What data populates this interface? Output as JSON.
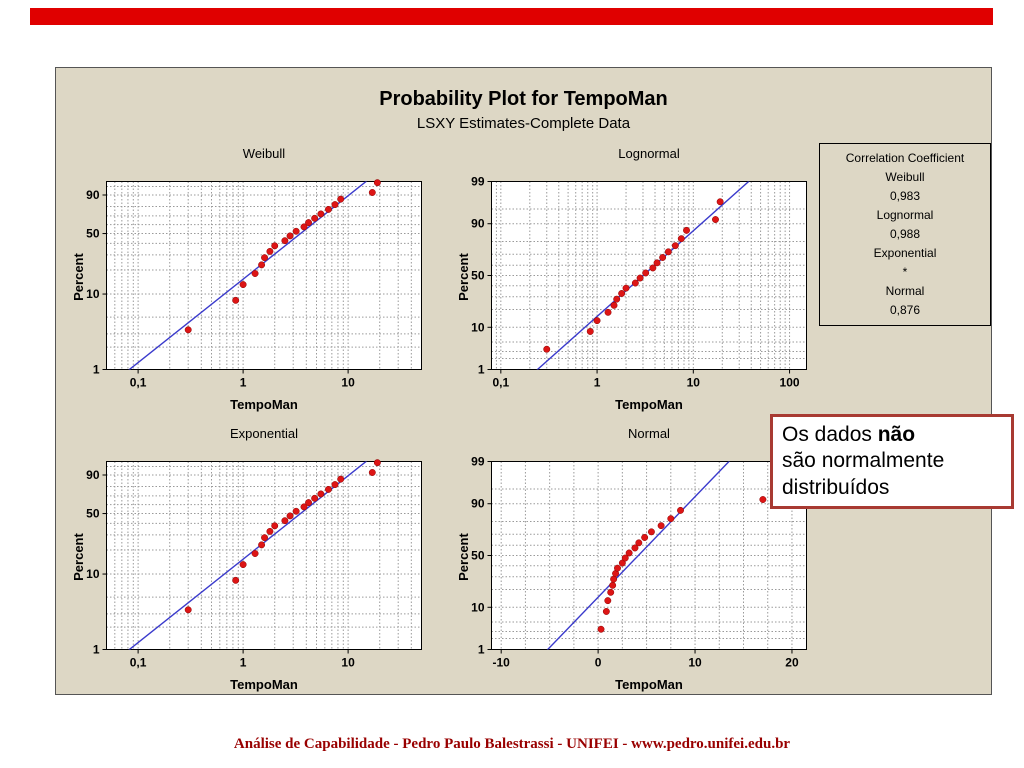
{
  "slide": {
    "accent_color": "#e00000",
    "footer_color": "#990000",
    "footer": "Análise de Capabilidade - Pedro Paulo Balestrassi - UNIFEI -  www.pedro.unifei.edu.br"
  },
  "callout": {
    "border_color": "#a83a32",
    "line1_prefix": "Os dados ",
    "line1_bold": "não",
    "line2": "são normalmente",
    "line3": "distribuídos"
  },
  "legend": {
    "lines": [
      "Correlation Coefficient",
      "Weibull",
      "0,983",
      "Lognormal",
      "0,988",
      "Exponential",
      "*",
      "Normal",
      "0,876"
    ]
  },
  "chart_data": {
    "type": "scatter",
    "subtype": "probability-plot-grid",
    "title": "Probability Plot for TempoMan",
    "subtitle": "LSXY Estimates-Complete Data",
    "panel_color": "#ddd7c5",
    "point_color": "#dd1515",
    "line_color": "#3a3acc",
    "sample": {
      "x": [
        0.3,
        0.85,
        1.0,
        1.3,
        1.5,
        1.6,
        1.8,
        2.0,
        2.5,
        2.8,
        3.2,
        3.8,
        4.2,
        4.8,
        5.5,
        6.5,
        7.5,
        8.5,
        17,
        19
      ],
      "percent": [
        3.4,
        8.3,
        13.2,
        18.1,
        23.0,
        27.9,
        32.8,
        37.7,
        42.6,
        47.5,
        52.5,
        57.4,
        62.3,
        67.2,
        72.1,
        77.0,
        81.9,
        86.8,
        91.7,
        96.6
      ]
    },
    "plots": [
      {
        "title": "Weibull",
        "xlabel": "TempoMan",
        "ylabel": "Percent",
        "xscale": "log",
        "yscale": "weibull",
        "xmin": 0.05,
        "xmax": 50,
        "ymin": 1,
        "ymax": 97,
        "xticks": [
          0.1,
          1,
          10
        ],
        "xtick_labels": [
          "0,1",
          "1",
          "10"
        ],
        "yticks": [
          1,
          10,
          50,
          90
        ],
        "ygrid": [
          1,
          2,
          3,
          5,
          10,
          20,
          30,
          40,
          50,
          60,
          70,
          80,
          90,
          95
        ]
      },
      {
        "title": "Lognormal",
        "xlabel": "TempoMan",
        "ylabel": "Percent",
        "xscale": "log",
        "yscale": "normal",
        "xmin": 0.08,
        "xmax": 150,
        "ymin": 1,
        "ymax": 99,
        "xticks": [
          0.1,
          1,
          10,
          100
        ],
        "xtick_labels": [
          "0,1",
          "1",
          "10",
          "100"
        ],
        "yticks": [
          1,
          10,
          50,
          90,
          99
        ],
        "ygrid": [
          1,
          2,
          3,
          5,
          10,
          20,
          30,
          40,
          50,
          60,
          70,
          80,
          90,
          95,
          99
        ]
      },
      {
        "title": "Exponential",
        "xlabel": "TempoMan",
        "ylabel": "Percent",
        "xscale": "log",
        "yscale": "weibull",
        "xmin": 0.05,
        "xmax": 50,
        "ymin": 1,
        "ymax": 97,
        "xticks": [
          0.1,
          1,
          10
        ],
        "xtick_labels": [
          "0,1",
          "1",
          "10"
        ],
        "yticks": [
          1,
          10,
          50,
          90
        ],
        "ygrid": [
          1,
          2,
          3,
          5,
          10,
          20,
          30,
          40,
          50,
          60,
          70,
          80,
          90,
          95
        ]
      },
      {
        "title": "Normal",
        "xlabel": "TempoMan",
        "ylabel": "Percent",
        "xscale": "linear",
        "yscale": "normal",
        "xmin": -11,
        "xmax": 21.5,
        "ymin": 1,
        "ymax": 99,
        "xticks": [
          -10,
          0,
          10,
          20
        ],
        "xtick_labels": [
          "-10",
          "0",
          "10",
          "20"
        ],
        "xgrid": [
          -10,
          -7.5,
          -5,
          -2.5,
          0,
          2.5,
          5,
          7.5,
          10,
          12.5,
          15,
          17.5,
          20
        ],
        "yticks": [
          1,
          10,
          50,
          90,
          99
        ],
        "ygrid": [
          1,
          2,
          3,
          5,
          10,
          20,
          30,
          40,
          50,
          60,
          70,
          80,
          90,
          95,
          99
        ],
        "line": {
          "x1": -5.2,
          "p1": 1,
          "x2": 13.5,
          "p2": 99
        }
      }
    ]
  }
}
